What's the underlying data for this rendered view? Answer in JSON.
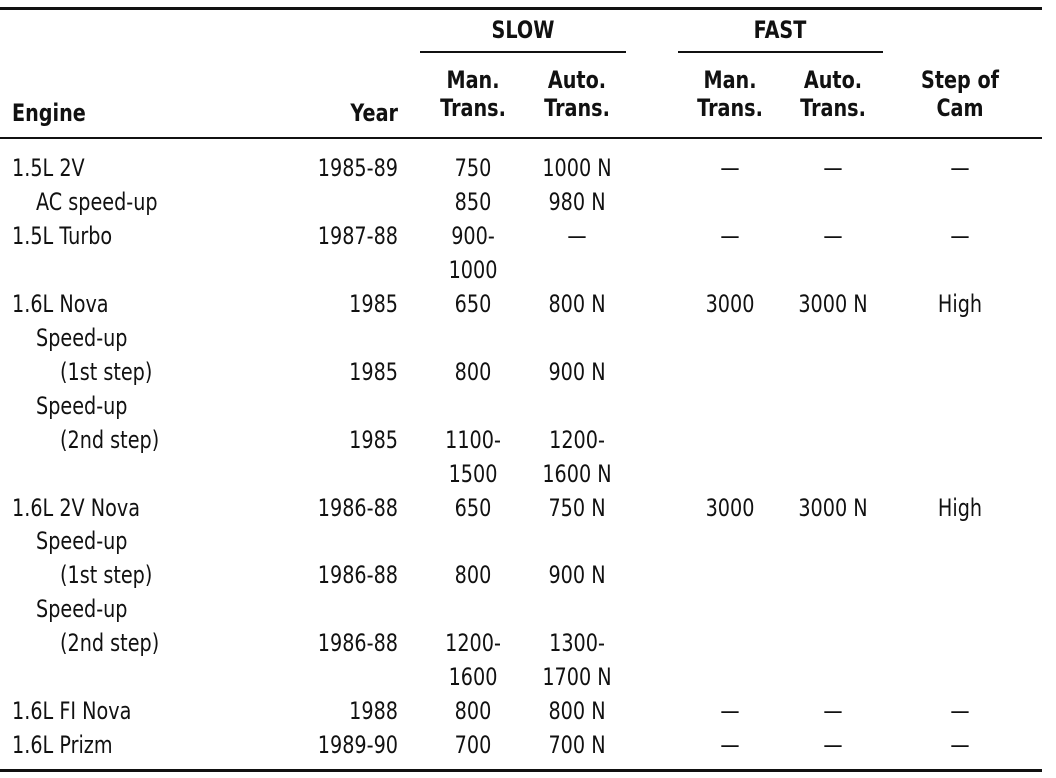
{
  "header": {
    "slow": "SLOW",
    "fast": "FAST",
    "columns": {
      "engine": [
        "Engine"
      ],
      "year": [
        "Year"
      ],
      "slow_man": [
        "Man.",
        "Trans."
      ],
      "slow_auto": [
        "Auto.",
        "Trans."
      ],
      "fast_man": [
        "Man.",
        "Trans."
      ],
      "fast_auto": [
        "Auto.",
        "Trans."
      ],
      "step": [
        "Step of",
        "Cam"
      ]
    }
  },
  "table": {
    "rows": [
      {
        "engine": [
          "1.5L 2V"
        ],
        "year": [
          "1985-89"
        ],
        "slow_man": [
          "750"
        ],
        "slow_auto": [
          "1000 N"
        ],
        "fast_man": [
          "—"
        ],
        "fast_auto": [
          "—"
        ],
        "step": [
          "—"
        ]
      },
      {
        "engine": [
          "AC speed-up"
        ],
        "slow_man": [
          "850"
        ],
        "slow_auto": [
          "980 N"
        ]
      },
      {
        "engine": [
          "1.5L Turbo"
        ],
        "year": [
          "1987-88"
        ],
        "slow_man": [
          "900-",
          "1000"
        ],
        "slow_auto": [
          "—"
        ],
        "fast_man": [
          "—"
        ],
        "fast_auto": [
          "—"
        ],
        "step": [
          "—"
        ]
      },
      {
        "engine": [
          "1.6L Nova"
        ],
        "year": [
          "1985"
        ],
        "slow_man": [
          "650"
        ],
        "slow_auto": [
          "800 N"
        ],
        "fast_man": [
          "3000"
        ],
        "fast_auto": [
          "3000 N"
        ],
        "step": [
          "High"
        ]
      },
      {
        "engine": [
          "Speed-up",
          "(1st step)"
        ],
        "year": [
          "1985"
        ],
        "slow_man": [
          "800"
        ],
        "slow_auto": [
          "900 N"
        ]
      },
      {
        "engine": [
          "Speed-up",
          "(2nd step)"
        ],
        "year": [
          "1985"
        ],
        "slow_man": [
          "1100-",
          "1500"
        ],
        "slow_auto": [
          "1200-",
          "1600 N"
        ]
      },
      {
        "engine": [
          "1.6L 2V Nova"
        ],
        "year": [
          "1986-88"
        ],
        "slow_man": [
          "650"
        ],
        "slow_auto": [
          "750 N"
        ],
        "fast_man": [
          "3000"
        ],
        "fast_auto": [
          "3000 N"
        ],
        "step": [
          "High"
        ]
      },
      {
        "engine": [
          "Speed-up",
          "(1st step)"
        ],
        "year": [
          "1986-88"
        ],
        "slow_man": [
          "800"
        ],
        "slow_auto": [
          "900 N"
        ]
      },
      {
        "engine": [
          "Speed-up",
          "(2nd step)"
        ],
        "year": [
          "1986-88"
        ],
        "slow_man": [
          "1200-",
          "1600"
        ],
        "slow_auto": [
          "1300-",
          "1700 N"
        ]
      },
      {
        "engine": [
          "1.6L FI Nova"
        ],
        "year": [
          "1988"
        ],
        "slow_man": [
          "800"
        ],
        "slow_auto": [
          "800 N"
        ],
        "fast_man": [
          "—"
        ],
        "fast_auto": [
          "—"
        ],
        "step": [
          "—"
        ]
      },
      {
        "engine": [
          "1.6L Prizm"
        ],
        "year": [
          "1989-90"
        ],
        "slow_man": [
          "700"
        ],
        "slow_auto": [
          "700 N"
        ],
        "fast_man": [
          "—"
        ],
        "fast_auto": [
          "—"
        ],
        "step": [
          "—"
        ]
      }
    ]
  }
}
